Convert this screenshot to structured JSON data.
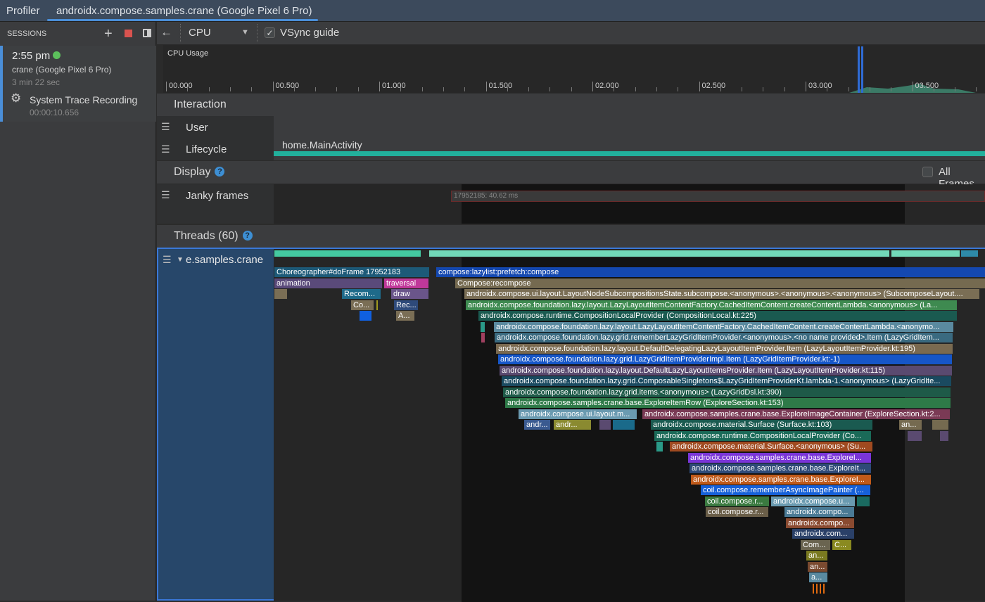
{
  "app": {
    "title": "Profiler",
    "tab": "androidx.compose.samples.crane (Google Pixel 6 Pro)"
  },
  "sessions": {
    "header": "SESSIONS",
    "add_icon": "plus-icon",
    "stop_icon": "stop-icon",
    "layout_icon": "panel-icon",
    "item": {
      "time": "2:55 pm",
      "status_color": "#5cbf5c",
      "device": "crane (Google Pixel 6 Pro)",
      "duration": "3 min 22 sec"
    },
    "recording": {
      "label": "System Trace Recording",
      "time": "00:00:10.656"
    }
  },
  "toolbar": {
    "back_icon": "arrow-left-icon",
    "profiler_select": "CPU",
    "vsync_label": "VSync guide",
    "vsync_checked": true
  },
  "cpu_usage": {
    "label": "CPU Usage",
    "ticks": [
      "00.000",
      "00.500",
      "01.000",
      "01.500",
      "02.000",
      "02.500",
      "03.000",
      "03.500"
    ]
  },
  "interaction": {
    "title": "Interaction",
    "rows": [
      "User",
      "Lifecycle"
    ],
    "lifecycle_event": "home.MainActivity"
  },
  "display": {
    "title": "Display",
    "all_frames_label": "All Frames",
    "all_frames_checked": false,
    "janky_label": "Janky frames",
    "janky_frame": "17952185: 40.62 ms"
  },
  "threads": {
    "title": "Threads (60)",
    "thread_name": "e.samples.crane",
    "slices": [
      {
        "label": "Choreographer#doFrame 17952183",
        "color": "#1d5a78"
      },
      {
        "label": "compose:lazylist:prefetch:compose",
        "color": "#1448b0"
      },
      {
        "label": "animation",
        "color": "#5a4a7a"
      },
      {
        "label": "traversal",
        "color": "#c0389a"
      },
      {
        "label": "Compose:recompose",
        "color": "#756a50"
      },
      {
        "label": "",
        "color": "#7a6e55"
      },
      {
        "label": "Recom...",
        "color": "#1e6a8a"
      },
      {
        "label": "draw",
        "color": "#6a558a"
      },
      {
        "label": "androidx.compose.ui.layout.LayoutNodeSubcompositionsState.subcompose.<anonymous>.<anonymous>.<anonymous> (SubcomposeLayout....",
        "color": "#7a6e55"
      },
      {
        "label": "Co...",
        "color": "#7a6e55"
      },
      {
        "label": "",
        "color": "#a09a20"
      },
      {
        "label": "Rec...",
        "color": "#2e4a7a"
      },
      {
        "label": "androidx.compose.foundation.lazy.layout.LazyLayoutItemContentFactory.CachedItemContent.createContentLambda.<anonymous> (La...",
        "color": "#3e8a50"
      },
      {
        "label": "",
        "color": "#1060e0"
      },
      {
        "label": "A...",
        "color": "#7a6e55"
      },
      {
        "label": "androidx.compose.runtime.CompositionLocalProvider (CompositionLocal.kt:225)",
        "color": "#1a5a50"
      },
      {
        "label": "",
        "color": "#2a9a88"
      },
      {
        "label": "androidx.compose.foundation.lazy.layout.LazyLayoutItemContentFactory.CachedItemContent.createContentLambda.<anonymo...",
        "color": "#5a8aa0"
      },
      {
        "label": "",
        "color": "#a04060"
      },
      {
        "label": "androidx.compose.foundation.lazy.grid.rememberLazyGridItemProvider.<anonymous>.<no name provided>.Item (LazyGridItem...",
        "color": "#3a6a80"
      },
      {
        "label": "androidx.compose.foundation.lazy.layout.DefaultDelegatingLazyLayoutItemProvider.Item (LazyLayoutItemProvider.kt:195)",
        "color": "#7a6a50"
      },
      {
        "label": "androidx.compose.foundation.lazy.grid.LazyGridItemProviderImpl.Item (LazyGridItemProvider.kt:-1)",
        "color": "#1656c8"
      },
      {
        "label": "androidx.compose.foundation.lazy.layout.DefaultLazyLayoutItemsProvider.Item (LazyLayoutItemProvider.kt:115)",
        "color": "#5a4a70"
      },
      {
        "label": "androidx.compose.foundation.lazy.grid.ComposableSingletons$LazyGridItemProviderKt.lambda-1.<anonymous> (LazyGridIte...",
        "color": "#1a4a60"
      },
      {
        "label": "androidx.compose.foundation.lazy.grid.items.<anonymous> (LazyGridDsl.kt:390)",
        "color": "#1e5a48"
      },
      {
        "label": "androidx.compose.samples.crane.base.ExploreItemRow (ExploreSection.kt:153)",
        "color": "#2e7a48"
      },
      {
        "label": "androidx.compose.ui.layout.m...",
        "color": "#6a9ab0"
      },
      {
        "label": "androidx.compose.samples.crane.base.ExploreImageContainer (ExploreSection.kt:2...",
        "color": "#7a3a55"
      },
      {
        "label": "andr...",
        "color": "#3a5a90"
      },
      {
        "label": "andr...",
        "color": "#8a8a30"
      },
      {
        "label": "",
        "color": "#5a4a70"
      },
      {
        "label": "",
        "color": "#1a6a8a"
      },
      {
        "label": "androidx.compose.material.Surface (Surface.kt:103)",
        "color": "#1a5a50"
      },
      {
        "label": "an...",
        "color": "#756a50"
      },
      {
        "label": "",
        "color": "#756a50"
      },
      {
        "label": "androidx.compose.runtime.CompositionLocalProvider (Co...",
        "color": "#1a6a58"
      },
      {
        "label": "",
        "color": "#5a4a70"
      },
      {
        "label": "",
        "color": "#5a4a70"
      },
      {
        "label": "",
        "color": "#2a9a88"
      },
      {
        "label": "androidx.compose.material.Surface.<anonymous> (Su...",
        "color": "#a04a20"
      },
      {
        "label": "androidx.compose.samples.crane.base.ExploreI...",
        "color": "#7a35d8"
      },
      {
        "label": "androidx.compose.samples.crane.base.ExploreIt...",
        "color": "#2e4a78"
      },
      {
        "label": "androidx.compose.samples.crane.base.ExploreI...",
        "color": "#c05a1a"
      },
      {
        "label": "coil.compose.rememberAsyncImagePainter (...",
        "color": "#1660d8"
      },
      {
        "label": "coil.compose.r...",
        "color": "#3a7a40"
      },
      {
        "label": "androidx.compose.u...",
        "color": "#6a9ab0"
      },
      {
        "label": "",
        "color": "#1a6a60"
      },
      {
        "label": "coil.compose.r...",
        "color": "#6a5e48"
      },
      {
        "label": "androidx.compo...",
        "color": "#4a7a95"
      },
      {
        "label": "androidx.compo...",
        "color": "#8a4a30"
      },
      {
        "label": "androidx.com...",
        "color": "#2a4068"
      },
      {
        "label": "Com...",
        "color": "#6a6450"
      },
      {
        "label": "C...",
        "color": "#8a8a20"
      },
      {
        "label": "an...",
        "color": "#7a7a20"
      },
      {
        "label": "an...",
        "color": "#7a4a30"
      },
      {
        "label": "a...",
        "color": "#5a8aa0"
      }
    ]
  }
}
